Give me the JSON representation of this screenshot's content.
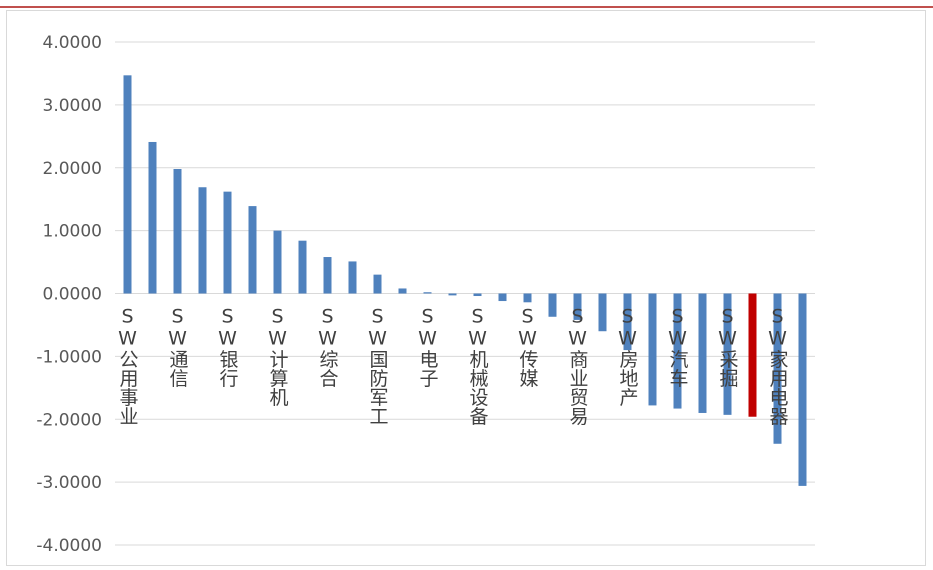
{
  "colors": {
    "bar": "#4f81bd",
    "highlight": "#c00000",
    "grid": "#d9d9d9",
    "top_rule": "#c0504d",
    "frame": "#d9d9d9"
  },
  "chart_data": {
    "type": "bar",
    "title": "",
    "xlabel": "",
    "ylabel": "",
    "ylim": [
      -4,
      4
    ],
    "yticks": [
      4,
      3,
      2,
      1,
      0,
      -1,
      -2,
      -3,
      -4
    ],
    "ytick_labels": [
      "4.0000",
      "3.0000",
      "2.0000",
      "1.0000",
      "0.0000",
      "-1.0000",
      "-2.0000",
      "-3.0000",
      "-4.0000"
    ],
    "grid": true,
    "legend": "none",
    "values": [
      3.47,
      2.41,
      1.98,
      1.69,
      1.62,
      1.39,
      1.0,
      0.84,
      0.58,
      0.51,
      0.3,
      0.08,
      0.02,
      -0.03,
      -0.04,
      -0.12,
      -0.14,
      -0.37,
      -0.42,
      -0.6,
      -0.9,
      -1.78,
      -1.83,
      -1.9,
      -1.93,
      -1.96,
      -2.39,
      -3.06
    ],
    "highlight_index": 25,
    "category_labels": [
      {
        "index": 0,
        "text": "SW公用事业"
      },
      {
        "index": 2,
        "text": "SW通信"
      },
      {
        "index": 4,
        "text": "SW银行"
      },
      {
        "index": 6,
        "text": "SW计算机"
      },
      {
        "index": 8,
        "text": "SW综合"
      },
      {
        "index": 10,
        "text": "SW国防军工"
      },
      {
        "index": 12,
        "text": "SW电子"
      },
      {
        "index": 14,
        "text": "SW机械设备"
      },
      {
        "index": 16,
        "text": "SW传媒"
      },
      {
        "index": 18,
        "text": "SW商业贸易"
      },
      {
        "index": 20,
        "text": "SW房地产"
      },
      {
        "index": 22,
        "text": "SW汽车"
      },
      {
        "index": 24,
        "text": "SW采掘"
      },
      {
        "index": 26,
        "text": "SW家用电器"
      }
    ]
  }
}
